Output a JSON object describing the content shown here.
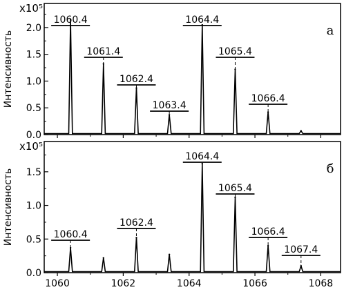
{
  "chart_data": [
    {
      "type": "line",
      "panel_label": "а",
      "ylabel": "Интенсивность",
      "y_multiplier": "x10⁵",
      "xlim": [
        1059.6,
        1068.6
      ],
      "ylim": [
        0,
        2.45
      ],
      "x_ticks": [
        "1060",
        "1062",
        "1064",
        "1066",
        "1068"
      ],
      "y_ticks": [
        "0.0",
        "0.5",
        "1.0",
        "1.5",
        "2.0"
      ],
      "y_tick_values": [
        0,
        0.5,
        1.0,
        1.5,
        2.0
      ],
      "peaks": [
        {
          "x": 1060.4,
          "y": 2.15,
          "label": "1060.4"
        },
        {
          "x": 1061.4,
          "y": 1.32,
          "label": "1061.4"
        },
        {
          "x": 1062.4,
          "y": 0.87,
          "label": "1062.4"
        },
        {
          "x": 1063.4,
          "y": 0.37,
          "label": "1063.4"
        },
        {
          "x": 1064.4,
          "y": 2.05,
          "label": "1064.4"
        },
        {
          "x": 1065.4,
          "y": 1.22,
          "label": "1065.4"
        },
        {
          "x": 1066.4,
          "y": 0.42,
          "label": "1066.4"
        },
        {
          "x": 1067.4,
          "y": 0.07,
          "label": ""
        }
      ]
    },
    {
      "type": "line",
      "panel_label": "б",
      "ylabel": "Интенсивность",
      "y_multiplier": "x10⁵",
      "xlim": [
        1059.6,
        1068.6
      ],
      "ylim": [
        0,
        1.95
      ],
      "x_ticks": [
        "1060",
        "1062",
        "1064",
        "1066",
        "1068"
      ],
      "y_ticks": [
        "0.0",
        "0.5",
        "1.0",
        "1.5"
      ],
      "y_tick_values": [
        0,
        0.5,
        1.0,
        1.5
      ],
      "peaks": [
        {
          "x": 1060.4,
          "y": 0.37,
          "label": "1060.4"
        },
        {
          "x": 1061.4,
          "y": 0.22,
          "label": ""
        },
        {
          "x": 1062.4,
          "y": 0.52,
          "label": "1062.4"
        },
        {
          "x": 1063.4,
          "y": 0.27,
          "label": ""
        },
        {
          "x": 1064.4,
          "y": 1.62,
          "label": "1064.4"
        },
        {
          "x": 1065.4,
          "y": 1.12,
          "label": "1065.4"
        },
        {
          "x": 1066.4,
          "y": 0.4,
          "label": "1066.4"
        },
        {
          "x": 1067.4,
          "y": 0.1,
          "label": "1067.4"
        }
      ]
    }
  ]
}
